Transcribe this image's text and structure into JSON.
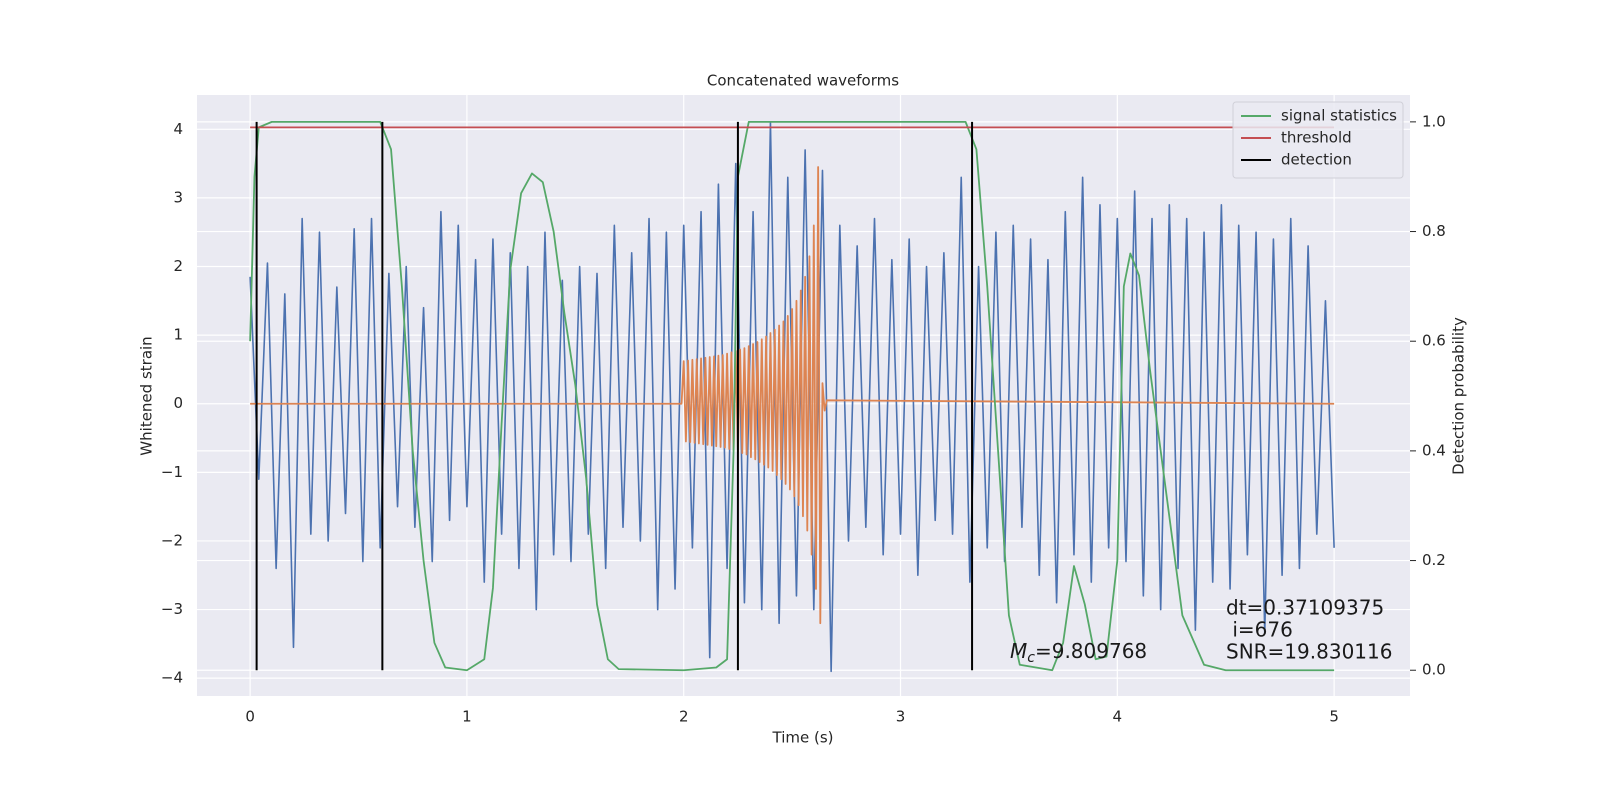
{
  "chart_data": {
    "type": "line",
    "title": "Concatenated waveforms",
    "x_label": "Time (s)",
    "y_label": "Whitened strain",
    "y2_label": "Detection probability",
    "xlim": [
      -0.245,
      5.35
    ],
    "ylim": [
      -4.26,
      4.5
    ],
    "y2lim": [
      -0.047,
      1.049
    ],
    "xticks": [
      0,
      1,
      2,
      3,
      4,
      5
    ],
    "yticks": [
      {
        "value": -4,
        "label": "−4"
      },
      {
        "value": -3,
        "label": "−3"
      },
      {
        "value": -2,
        "label": "−2"
      },
      {
        "value": -1,
        "label": "−1"
      },
      0,
      1,
      2,
      3,
      4
    ],
    "y2ticks": [
      {
        "value": 0,
        "label": "0.0"
      },
      {
        "value": 0.2,
        "label": "0.2"
      },
      {
        "value": 0.4,
        "label": "0.4"
      },
      {
        "value": 0.6,
        "label": "0.6"
      },
      {
        "value": 0.8,
        "label": "0.8"
      },
      {
        "value": 1,
        "label": "1.0"
      }
    ],
    "grid": true,
    "legend": "upper right",
    "series": [
      {
        "color": "#4c72b0",
        "x": [
          0,
          0.04,
          0.08,
          0.12,
          0.16,
          0.2,
          0.24,
          0.28,
          0.32,
          0.36,
          0.4,
          0.44,
          0.48,
          0.52,
          0.56,
          0.6,
          0.64,
          0.68,
          0.72,
          0.76,
          0.8,
          0.84,
          0.88,
          0.92,
          0.96,
          1,
          1.04,
          1.08,
          1.12,
          1.16,
          1.2,
          1.24,
          1.28,
          1.32,
          1.36,
          1.4,
          1.44,
          1.48,
          1.52,
          1.56,
          1.6,
          1.64,
          1.68,
          1.72,
          1.76,
          1.8,
          1.84,
          1.88,
          1.92,
          1.96,
          2,
          2.04,
          2.08,
          2.12,
          2.16,
          2.2,
          2.24,
          2.28,
          2.32,
          2.36,
          2.4,
          2.44,
          2.48,
          2.52,
          2.56,
          2.6,
          2.64,
          2.68,
          2.72,
          2.76,
          2.8,
          2.84,
          2.88,
          2.92,
          2.96,
          3,
          3.04,
          3.08,
          3.12,
          3.16,
          3.2,
          3.24,
          3.28,
          3.32,
          3.36,
          3.4,
          3.44,
          3.48,
          3.52,
          3.56,
          3.6,
          3.64,
          3.68,
          3.72,
          3.76,
          3.8,
          3.84,
          3.88,
          3.92,
          3.96,
          4,
          4.04,
          4.08,
          4.12,
          4.16,
          4.2,
          4.24,
          4.28,
          4.32,
          4.36,
          4.4,
          4.44,
          4.48,
          4.52,
          4.56,
          4.6,
          4.64,
          4.68,
          4.72,
          4.76,
          4.8,
          4.84,
          4.88,
          4.92,
          4.96,
          5
        ],
        "values": [
          1.85,
          -1.1,
          2.05,
          -2.4,
          1.6,
          -3.55,
          2.7,
          -1.9,
          2.5,
          -2.0,
          1.7,
          -1.6,
          2.55,
          -2.3,
          2.7,
          -2.1,
          1.9,
          -1.5,
          2.0,
          -1.8,
          1.4,
          -2.3,
          2.8,
          -1.7,
          2.6,
          -1.5,
          2.1,
          -2.6,
          2.4,
          -1.9,
          2.2,
          -2.4,
          2.0,
          -3.0,
          2.5,
          -2.2,
          1.8,
          -2.3,
          2.0,
          -1.9,
          1.9,
          -2.4,
          2.6,
          -1.8,
          2.2,
          -2.0,
          2.7,
          -3.0,
          2.5,
          -2.7,
          2.6,
          -2.1,
          2.8,
          -3.7,
          3.2,
          -2.4,
          3.5,
          -2.9,
          2.8,
          -3.0,
          4.1,
          -3.2,
          3.3,
          -2.8,
          3.7,
          -3.0,
          3.4,
          -3.9,
          2.6,
          -2.0,
          2.3,
          -1.8,
          2.7,
          -2.2,
          2.1,
          -1.9,
          2.4,
          -2.5,
          2.0,
          -1.7,
          2.2,
          -1.9,
          3.3,
          -2.6,
          2.0,
          -2.1,
          2.5,
          -2.3,
          2.6,
          -1.8,
          2.4,
          -2.5,
          2.1,
          -2.9,
          2.8,
          -2.2,
          3.3,
          -2.6,
          2.9,
          -2.1,
          2.7,
          -2.3,
          3.1,
          -2.8,
          2.7,
          -3.0,
          2.9,
          -2.4,
          2.7,
          -3.3,
          2.5,
          -2.6,
          2.9,
          -2.7,
          2.6,
          -2.2,
          2.5,
          -3.35,
          2.4,
          -2.5,
          2.7,
          -2.4,
          2.3,
          -1.9,
          1.5,
          -2.1
        ]
      },
      {
        "color": "#dd8452",
        "x": [
          0,
          1.99,
          2,
          2.01,
          2.02,
          2.03,
          2.04,
          2.05,
          2.06,
          2.07,
          2.08,
          2.09,
          2.1,
          2.11,
          2.12,
          2.13,
          2.14,
          2.15,
          2.16,
          2.17,
          2.18,
          2.19,
          2.2,
          2.21,
          2.22,
          2.23,
          2.24,
          2.25,
          2.26,
          2.27,
          2.28,
          2.29,
          2.3,
          2.31,
          2.32,
          2.33,
          2.34,
          2.35,
          2.36,
          2.37,
          2.38,
          2.39,
          2.4,
          2.41,
          2.42,
          2.43,
          2.44,
          2.45,
          2.46,
          2.47,
          2.48,
          2.49,
          2.5,
          2.51,
          2.52,
          2.53,
          2.54,
          2.55,
          2.56,
          2.57,
          2.58,
          2.59,
          2.6,
          2.61,
          2.62,
          2.63,
          2.64,
          2.65,
          2.66,
          5
        ],
        "values": [
          0,
          0,
          0.62,
          -0.55,
          0.63,
          -0.56,
          0.64,
          -0.57,
          0.65,
          -0.58,
          0.66,
          -0.59,
          0.67,
          -0.6,
          0.68,
          -0.61,
          0.69,
          -0.62,
          0.7,
          -0.63,
          0.71,
          -0.64,
          0.73,
          -0.66,
          0.75,
          -0.68,
          0.77,
          -0.7,
          0.79,
          -0.72,
          0.81,
          -0.74,
          0.84,
          -0.78,
          0.87,
          -0.81,
          0.9,
          -0.85,
          0.94,
          -0.89,
          0.98,
          -0.93,
          1.03,
          -0.98,
          1.08,
          -1.04,
          1.14,
          -1.1,
          1.2,
          -1.17,
          1.28,
          -1.25,
          1.38,
          -1.35,
          1.5,
          -1.48,
          1.65,
          -1.64,
          1.85,
          -1.85,
          2.15,
          -2.2,
          2.6,
          -2.7,
          3.45,
          -3.2,
          0.3,
          -0.1,
          0.05,
          0
        ]
      },
      {
        "name": "signal statistics",
        "color": "#55a868",
        "axis": "y2",
        "x": [
          0,
          0.02,
          0.04,
          0.1,
          0.6,
          0.65,
          0.7,
          0.75,
          0.8,
          0.85,
          0.9,
          1,
          1.08,
          1.12,
          1.16,
          1.2,
          1.25,
          1.3,
          1.35,
          1.4,
          1.45,
          1.5,
          1.55,
          1.6,
          1.65,
          1.7,
          2,
          2.15,
          2.2,
          2.23,
          2.25,
          2.3,
          3.3,
          3.35,
          3.4,
          3.45,
          3.5,
          3.55,
          3.7,
          3.75,
          3.8,
          3.85,
          3.9,
          3.95,
          4,
          4.03,
          4.06,
          4.1,
          4.15,
          4.2,
          4.3,
          4.4,
          4.5,
          5
        ],
        "values": [
          0.6,
          0.9,
          0.99,
          1,
          1,
          0.95,
          0.7,
          0.4,
          0.2,
          0.05,
          0.005,
          0,
          0.02,
          0.15,
          0.45,
          0.73,
          0.87,
          0.906,
          0.89,
          0.8,
          0.65,
          0.52,
          0.35,
          0.12,
          0.02,
          0.002,
          0,
          0.005,
          0.02,
          0.4,
          0.9,
          1,
          1,
          0.95,
          0.7,
          0.4,
          0.1,
          0.01,
          0,
          0.05,
          0.19,
          0.12,
          0.02,
          0.025,
          0.2,
          0.7,
          0.76,
          0.72,
          0.55,
          0.4,
          0.1,
          0.01,
          0,
          0
        ]
      },
      {
        "name": "threshold",
        "color": "#c44e52",
        "axis": "y2",
        "x": [
          0,
          5
        ],
        "values": [
          0.99,
          0.99
        ]
      },
      {
        "name": "detection",
        "color": "#000000",
        "axis": "y2",
        "style": "vlines",
        "x": [
          0.03,
          0.61,
          2.25,
          3.33
        ],
        "values": [
          1,
          1,
          1,
          1
        ]
      }
    ],
    "annotations": [
      {
        "lines": [
          "dt=0.37109375",
          " i=676",
          "SNR=19.830116"
        ]
      },
      {
        "symbol": "M",
        "subscript": "c",
        "text": "=9.809768"
      }
    ]
  }
}
